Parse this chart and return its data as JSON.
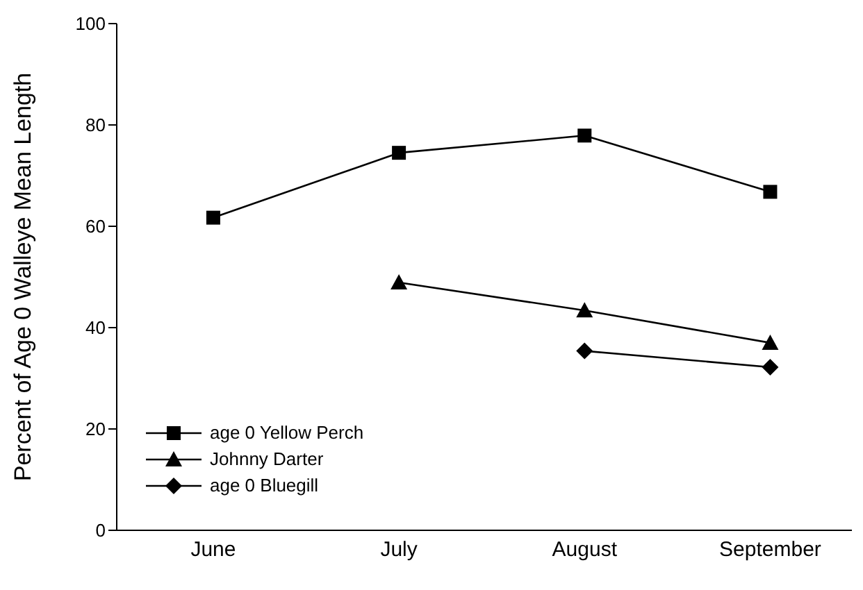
{
  "chart_data": {
    "type": "line",
    "ylabel": "Percent of Age 0 Walleye Mean Length",
    "categories": [
      "June",
      "July",
      "August",
      "September"
    ],
    "series": [
      {
        "name": "age 0 Yellow Perch",
        "color": "#000000",
        "marker": "square",
        "values": [
          61.7,
          74.5,
          77.9,
          66.8
        ]
      },
      {
        "name": "Johnny Darter",
        "color": "#000000",
        "marker": "triangle",
        "values": [
          null,
          48.9,
          43.4,
          37.0
        ]
      },
      {
        "name": "age 0 Bluegill",
        "color": "#000000",
        "marker": "diamond",
        "values": [
          null,
          null,
          35.4,
          32.2
        ]
      }
    ],
    "ylim": [
      0,
      100
    ],
    "yticks": [
      0,
      20,
      40,
      60,
      80,
      100
    ],
    "grid": false,
    "legend": "bottom left"
  }
}
